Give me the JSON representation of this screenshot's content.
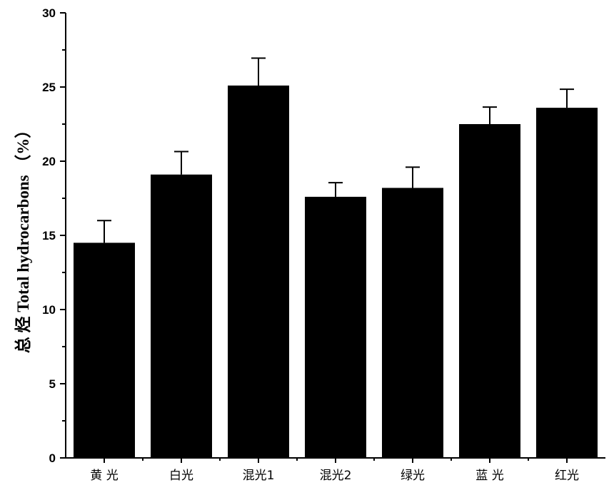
{
  "chart_data": {
    "type": "bar",
    "categories": [
      "黄 光",
      "白光",
      "混光1",
      "混光2",
      "绿光",
      "蓝 光",
      "红光"
    ],
    "values": [
      14.5,
      19.1,
      25.1,
      17.6,
      18.2,
      22.5,
      23.6
    ],
    "errors": [
      1.5,
      1.55,
      1.85,
      0.95,
      1.4,
      1.15,
      1.25
    ],
    "xlabel": "",
    "ylabel": "总 烃 Total hydrocarbons （%）",
    "ylim": [
      0,
      30
    ],
    "yticks": [
      "0",
      "5",
      "10",
      "15",
      "20",
      "25",
      "30"
    ],
    "grid": false,
    "bar_color": "#000000"
  }
}
